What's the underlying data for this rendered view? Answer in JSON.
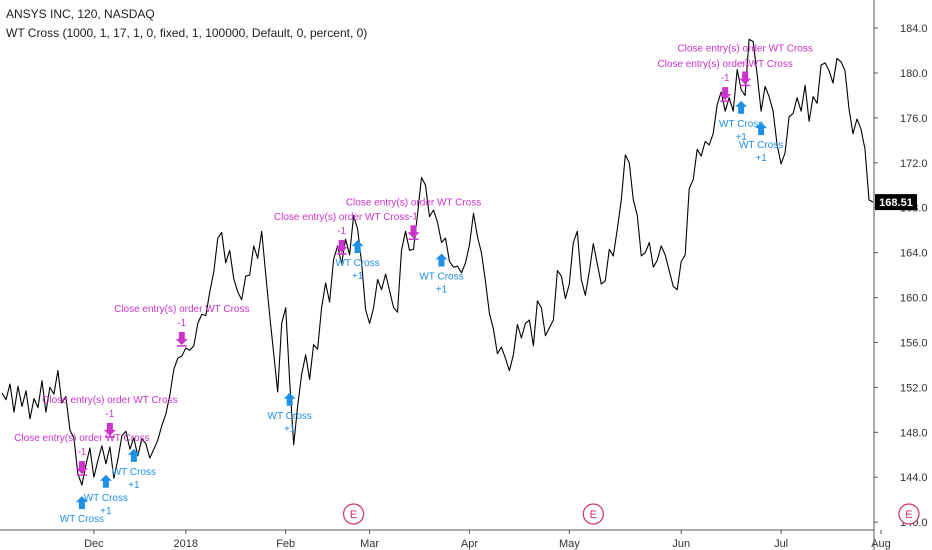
{
  "header": {
    "title": "ANSYS INC, 120, NASDAQ",
    "study": "WT Cross (1000, 1, 17, 1, 0, fixed, 1, 100000, Default, 0, percent, 0)"
  },
  "colors": {
    "line": "#000000",
    "sell": "#cc33cc",
    "buy": "#1e90e6",
    "earnings": "#d0306a",
    "last_price_bg": "#000000"
  },
  "chart_data": {
    "type": "line",
    "title": "ANSYS INC, 120, NASDAQ",
    "xlabel": "",
    "ylabel": "",
    "x_tick_labels": [
      "Dec",
      "2018",
      "Feb",
      "Mar",
      "Apr",
      "May",
      "Jun",
      "Jul",
      "Aug"
    ],
    "x_tick_index": [
      23,
      46,
      71,
      92,
      117,
      142,
      170,
      195,
      220
    ],
    "y_ticks": [
      140,
      144,
      148,
      152,
      156,
      160,
      164,
      168,
      172,
      176,
      180,
      184
    ],
    "ylim": [
      139.3,
      186.5
    ],
    "last_price": "168.51",
    "grid": false,
    "series": [
      {
        "values": [
          151.5,
          150.9,
          152.3,
          149.8,
          152.1,
          150.3,
          151.7,
          149.2,
          151.0,
          150.2,
          152.6,
          149.8,
          152.0,
          151.4,
          153.5,
          150.6,
          151.2,
          148.2,
          147.5,
          144.3,
          143.3,
          145.1,
          146.6,
          144.0,
          145.5,
          146.8,
          145.2,
          146.7,
          143.9,
          145.6,
          147.7,
          148.1,
          146.5,
          147.5,
          145.9,
          147.4,
          147.0,
          145.7,
          146.5,
          147.3,
          148.6,
          149.6,
          151.3,
          153.6,
          154.6,
          154.8,
          155.5,
          155.3,
          155.7,
          157.7,
          158.5,
          158.4,
          160.5,
          162.3,
          165.3,
          165.8,
          163.1,
          164.2,
          161.7,
          160.5,
          159.8,
          161.9,
          162.0,
          164.6,
          163.5,
          165.9,
          162.1,
          158.4,
          155.0,
          151.6,
          157.7,
          159.1,
          152.5,
          146.9,
          150.4,
          153.2,
          154.9,
          152.7,
          155.8,
          155.4,
          159.1,
          161.3,
          159.6,
          163.4,
          164.6,
          163.0,
          165.2,
          163.8,
          167.3,
          166.1,
          163.1,
          158.9,
          157.7,
          159.1,
          161.6,
          160.7,
          162.1,
          160.6,
          159.1,
          158.7,
          164.2,
          165.9,
          164.2,
          164.3,
          167.4,
          170.7,
          170.0,
          167.2,
          167.8,
          166.7,
          164.9,
          165.3,
          163.2,
          162.7,
          162.8,
          162.2,
          163.1,
          164.7,
          167.5,
          165.4,
          164.0,
          161.5,
          158.6,
          157.2,
          155.0,
          155.6,
          154.6,
          153.5,
          154.9,
          157.6,
          156.4,
          157.7,
          158.0,
          155.7,
          159.7,
          159.1,
          156.6,
          157.3,
          158.0,
          162.4,
          161.9,
          159.9,
          161.2,
          164.9,
          165.9,
          161.6,
          160.2,
          162.3,
          164.8,
          163.0,
          161.2,
          161.5,
          164.3,
          163.7,
          166.1,
          168.7,
          172.7,
          172.0,
          168.7,
          167.3,
          163.7,
          164.0,
          164.9,
          162.7,
          163.3,
          164.6,
          163.8,
          162.4,
          161.0,
          160.7,
          163.2,
          163.8,
          169.7,
          170.5,
          173.2,
          172.6,
          173.9,
          173.6,
          174.6,
          177.2,
          178.3,
          176.6,
          177.8,
          176.6,
          180.3,
          178.5,
          178.0,
          183.0,
          182.8,
          179.9,
          176.6,
          178.8,
          177.9,
          176.6,
          173.6,
          171.9,
          172.9,
          176.1,
          176.4,
          177.8,
          176.6,
          178.9,
          175.7,
          177.9,
          177.3,
          180.7,
          180.9,
          180.2,
          179.1,
          181.3,
          181.0,
          180.2,
          176.8,
          174.6,
          175.9,
          175.0,
          173.2,
          168.7,
          168.5
        ]
      }
    ]
  },
  "signals": {
    "sell": [
      {
        "i": 20,
        "label": "Close entry(s) order WT Cross",
        "qty": "-1"
      },
      {
        "i": 27,
        "label": "Close entry(s) order WT Cross",
        "qty": "-1"
      },
      {
        "i": 45,
        "label": "Close entry(s) order WT Cross",
        "qty": "-1"
      },
      {
        "i": 85,
        "label": "Close entry(s) order WT Cross",
        "qty": "-1"
      },
      {
        "i": 103,
        "label": "Close entry(s) order WT Cross",
        "qty": "-1"
      },
      {
        "i": 181,
        "label": "Close entry(s) order WT Cross",
        "qty": "-1"
      },
      {
        "i": 186,
        "label": "Close entry(s) order WT Cross",
        "qty": "-1"
      }
    ],
    "buy": [
      {
        "i": 20,
        "label": "WT Cross",
        "qty": ""
      },
      {
        "i": 26,
        "label": "WT Cross",
        "qty": "+1"
      },
      {
        "i": 33,
        "label": "WT Cross",
        "qty": "+1"
      },
      {
        "i": 72,
        "label": "WT Cross",
        "qty": "+1"
      },
      {
        "i": 89,
        "label": "WT Cross",
        "qty": "+1"
      },
      {
        "i": 110,
        "label": "WT Cross",
        "qty": "+1"
      },
      {
        "i": 185,
        "label": "WT Cross",
        "qty": "+1"
      },
      {
        "i": 190,
        "label": "WT Cross",
        "qty": "+1"
      }
    ]
  },
  "earnings": [
    {
      "i": 88,
      "label": "E"
    },
    {
      "i": 148,
      "label": "E"
    },
    {
      "i": 227,
      "label": "E"
    }
  ]
}
